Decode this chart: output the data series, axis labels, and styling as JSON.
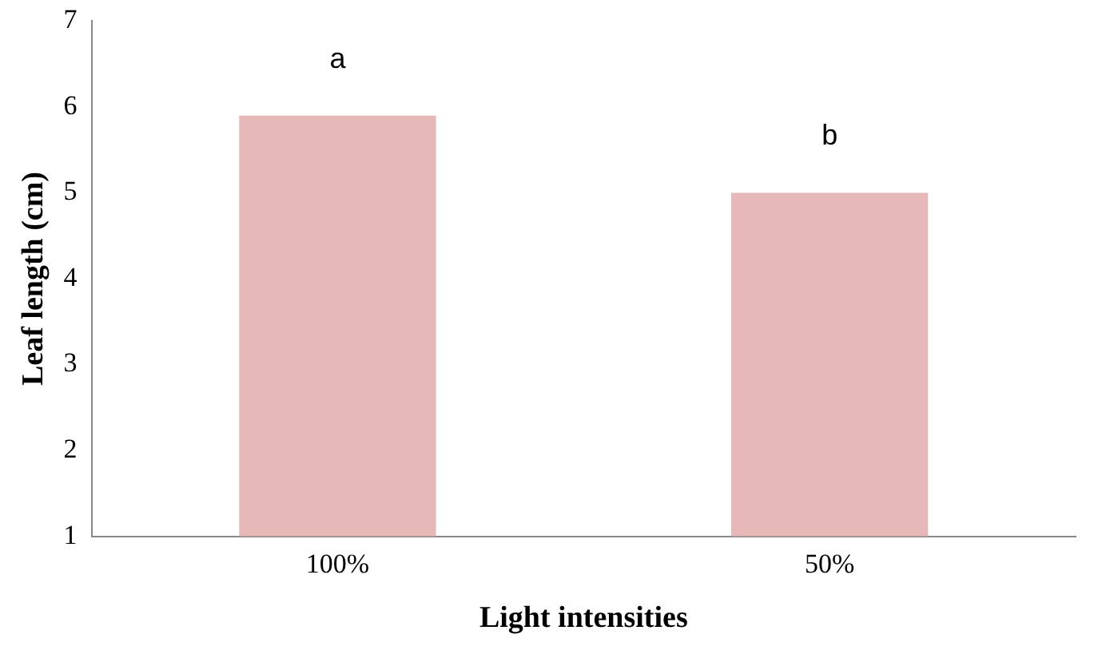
{
  "chart_data": {
    "type": "bar",
    "xlabel": "Light intensities",
    "ylabel": "Leaf length (cm)",
    "categories": [
      "100%",
      "50%"
    ],
    "values": [
      5.9,
      5.0
    ],
    "color": "#e6b8b7",
    "ylim": [
      1,
      7
    ],
    "yticks": [
      1,
      2,
      3,
      4,
      5,
      6,
      7
    ],
    "grid": false,
    "annotations": [
      "a",
      "b"
    ]
  }
}
